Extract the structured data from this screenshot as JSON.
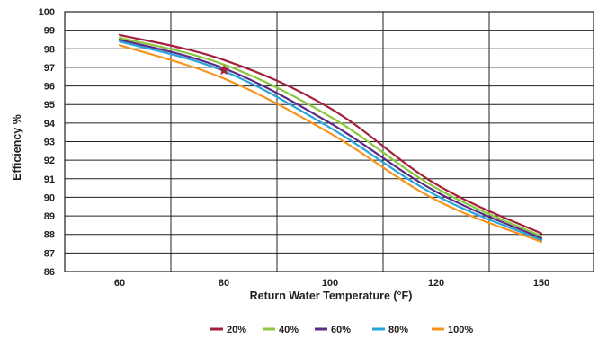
{
  "chart_data": {
    "type": "line",
    "title": "",
    "xlabel": "Return Water Temperature (°F)",
    "ylabel": "Efficiency %",
    "x": [
      60,
      80,
      100,
      120,
      150
    ],
    "x_tick_labels": [
      "60",
      "80",
      "100",
      "120",
      "150"
    ],
    "y_ticks": [
      86,
      87,
      88,
      89,
      90,
      91,
      92,
      93,
      94,
      95,
      96,
      97,
      98,
      99,
      100
    ],
    "ylim": [
      86,
      100
    ],
    "grid": true,
    "legend_position": "bottom-center",
    "series": [
      {
        "name": "20%",
        "color": "#a3213a",
        "values": [
          98.75,
          97.4,
          94.8,
          90.7,
          88.05
        ]
      },
      {
        "name": "40%",
        "color": "#8dc63f",
        "values": [
          98.6,
          97.15,
          94.35,
          90.5,
          87.9
        ]
      },
      {
        "name": "60%",
        "color": "#5b2c83",
        "values": [
          98.5,
          96.95,
          94.0,
          90.3,
          87.8
        ]
      },
      {
        "name": "80%",
        "color": "#29a3dd",
        "values": [
          98.4,
          96.8,
          93.75,
          90.1,
          87.7
        ]
      },
      {
        "name": "100%",
        "color": "#f7941d",
        "values": [
          98.2,
          96.4,
          93.45,
          89.85,
          87.6
        ]
      }
    ],
    "annotations": [
      {
        "type": "star-marker",
        "x": 80,
        "y": 96.85,
        "color": "#a3213a"
      }
    ]
  }
}
